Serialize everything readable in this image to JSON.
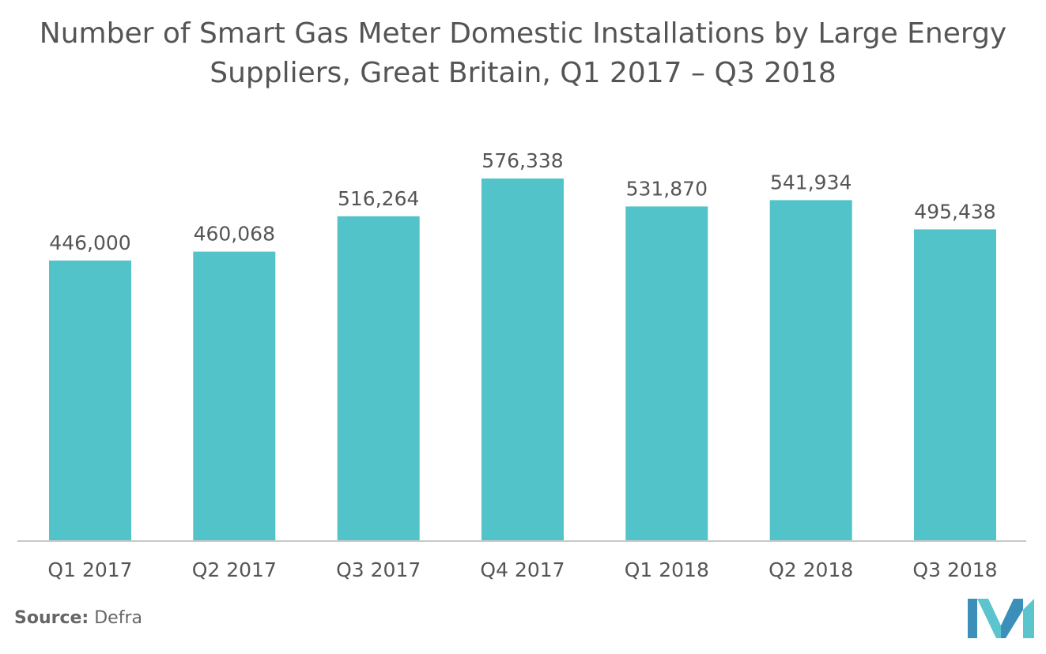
{
  "chart_data": {
    "type": "bar",
    "title": "Number of Smart Gas Meter Domestic Installations by Large Energy Suppliers, Great Britain, Q1 2017 – Q3 2018",
    "categories": [
      "Q1 2017",
      "Q2 2017",
      "Q3 2017",
      "Q4 2017",
      "Q1 2018",
      "Q2 2018",
      "Q3 2018"
    ],
    "values": [
      446000,
      460068,
      516264,
      576338,
      531870,
      541934,
      495438
    ],
    "data_labels": [
      "446,000",
      "460,068",
      "516,264",
      "576,338",
      "531,870",
      "541,934",
      "495,438"
    ],
    "xlabel": "",
    "ylabel": "",
    "ylim": [
      0,
      576338
    ],
    "grid": false,
    "legend": "none",
    "bar_color": "#51C3C9"
  },
  "source": {
    "label": "Source:",
    "text": "Defra"
  },
  "logo": {
    "icon": "mordor-intelligence-logo-icon",
    "colors": [
      "#3B8FB8",
      "#5BC4CC"
    ]
  }
}
